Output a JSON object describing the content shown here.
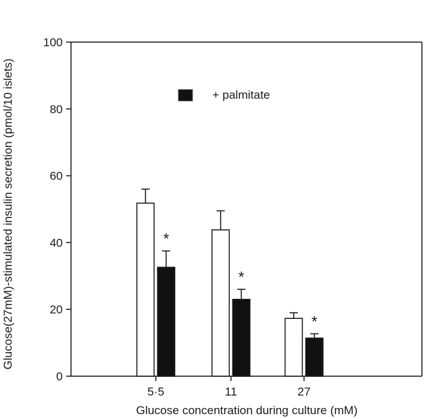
{
  "chart_data": {
    "type": "bar",
    "xlabel": "Glucose concentration during culture (mM)",
    "ylabel": "Glucose(27mM)-stimulated insulin secretion (pmol/10 islets)",
    "ylim": [
      0,
      100
    ],
    "yticks": [
      0,
      20,
      40,
      60,
      80,
      100
    ],
    "categories": [
      "5·5",
      "11",
      "27"
    ],
    "legend": {
      "position": "top-center",
      "label": "+ palmitate"
    },
    "significance_marker": "*",
    "colors": {
      "control": "#ffffff",
      "palmitate": "#111111",
      "axis": "#1a1a1a"
    },
    "series": [
      {
        "name": "",
        "fill": "control",
        "values": [
          51.8,
          43.8,
          17.3
        ],
        "errors": [
          4.2,
          5.7,
          1.7
        ],
        "significant": [
          false,
          false,
          false
        ]
      },
      {
        "name": "+ palmitate",
        "fill": "palmitate",
        "values": [
          32.6,
          23.0,
          11.4
        ],
        "errors": [
          4.9,
          3.0,
          1.3
        ],
        "significant": [
          true,
          true,
          true
        ]
      }
    ]
  }
}
